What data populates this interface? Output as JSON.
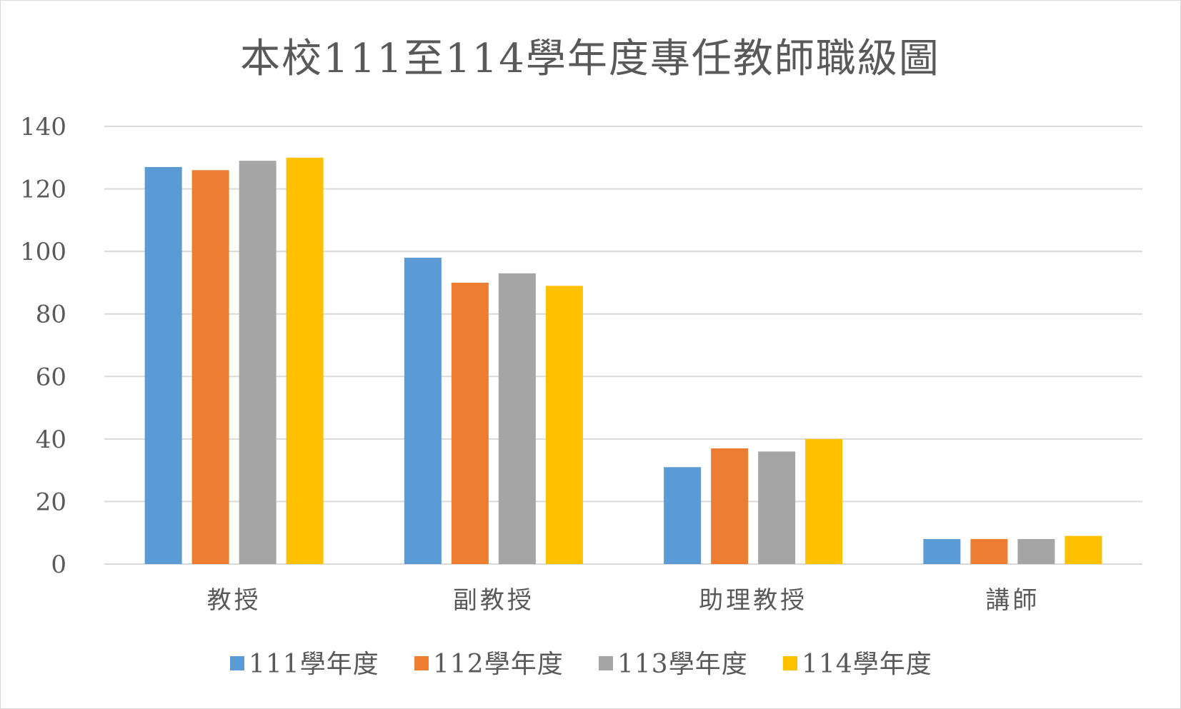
{
  "chart_data": {
    "type": "bar",
    "title": "本校111至114學年度專任教師職級圖",
    "categories": [
      "教授",
      "副教授",
      "助理教授",
      "講師"
    ],
    "series": [
      {
        "name": "111學年度",
        "values": [
          127,
          98,
          31,
          8
        ],
        "color": "#5b9bd5"
      },
      {
        "name": "112學年度",
        "values": [
          126,
          90,
          37,
          8
        ],
        "color": "#ed7d31"
      },
      {
        "name": "113學年度",
        "values": [
          129,
          93,
          36,
          8
        ],
        "color": "#a5a5a5"
      },
      {
        "name": "114學年度",
        "values": [
          130,
          89,
          40,
          9
        ],
        "color": "#ffc000"
      }
    ],
    "ylim": [
      0,
      140
    ],
    "yticks": [
      "0",
      "20",
      "40",
      "60",
      "80",
      "100",
      "120",
      "140"
    ],
    "grid": true,
    "legend_position": "bottom"
  }
}
